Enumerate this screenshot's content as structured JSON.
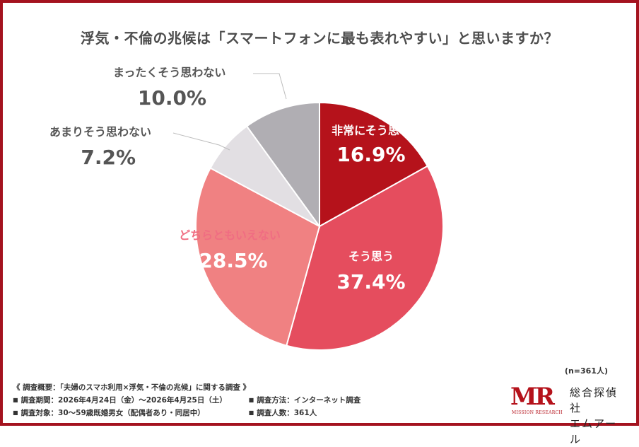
{
  "title": "浮気・不倫の兆候は「スマートフォンに最も表れやすい」と思いますか？",
  "chart_data": {
    "type": "pie",
    "title": "浮気・不倫の兆候は「スマートフォンに最も表れやすい」と思いますか？",
    "slices": [
      {
        "label": "非常にそう思う",
        "value": 16.9,
        "display": "16.9%",
        "color": "#b5121b",
        "label_color": "#ffffff",
        "value_color": "#ffffff"
      },
      {
        "label": "そう思う",
        "value": 37.4,
        "display": "37.4%",
        "color": "#e54d5e",
        "label_color": "#ffffff",
        "value_color": "#ffffff"
      },
      {
        "label": "どちらともいえない",
        "value": 28.5,
        "display": "28.5%",
        "color": "#f08182",
        "label_color": "#f06d82",
        "value_color": "#ffffff"
      },
      {
        "label": "あまりそう思わない",
        "value": 7.2,
        "display": "7.2%",
        "color": "#e2dfe3",
        "label_color": "#555555",
        "value_color": "#555555"
      },
      {
        "label": "まったくそう思わない",
        "value": 10.0,
        "display": "10.0%",
        "color": "#b0aeb3",
        "label_color": "#555555",
        "value_color": "#555555"
      }
    ],
    "sample": "(n=361人)"
  },
  "footer": {
    "heading": "《 調査概要：「夫婦のスマホ利用×浮気・不倫の兆候」に関する調査 》",
    "period": "調査期間：2026年4月24日（金）〜2026年4月25日（土）",
    "method": "調査方法：インターネット調査",
    "target": "調査対象：30〜59歳既婚男女（配偶者あり・同居中）",
    "count": "調査人数：361人",
    "bullet": "■"
  },
  "logo": {
    "mark": "MR",
    "sub": "MISSION RESEARCH",
    "name_line1": "総合探偵社",
    "name_line2": "エムアール"
  }
}
